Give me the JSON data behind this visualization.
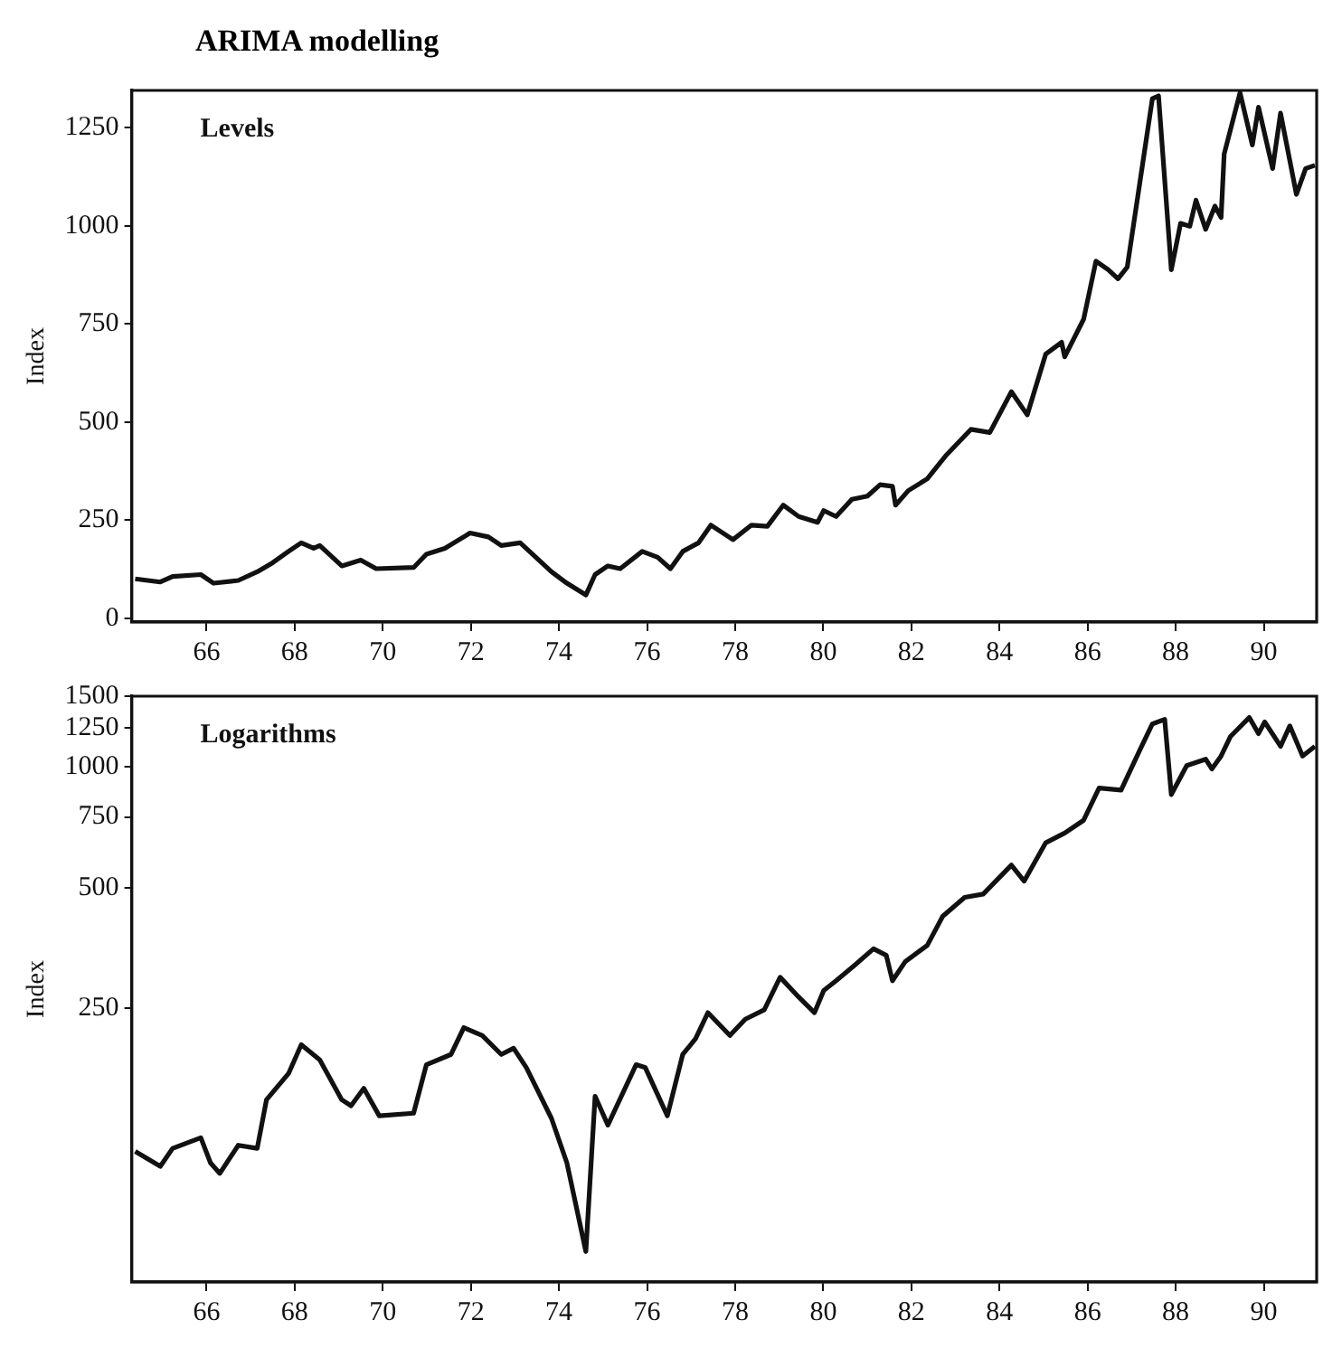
{
  "chart_data": [
    {
      "type": "line",
      "title": "ARIMA modelling",
      "ylabel": "Index",
      "annotations": [
        "Levels"
      ],
      "xlim": [
        64.3,
        91.2
      ],
      "xticks": [
        66,
        68,
        70,
        72,
        74,
        76,
        78,
        80,
        82,
        84,
        86,
        88,
        90
      ],
      "ylim": [
        -10,
        1345
      ],
      "yticks": [
        0,
        250,
        500,
        750,
        1000,
        1250
      ],
      "grid": false,
      "legend": false,
      "series": [
        {
          "color": "#111111",
          "x": [
            64.38,
            64.95,
            65.23,
            65.87,
            66.16,
            66.72,
            67.15,
            67.5,
            67.86,
            68.15,
            68.43,
            68.57,
            69.07,
            69.5,
            69.85,
            70.7,
            70.99,
            71.41,
            71.84,
            71.98,
            72.4,
            72.69,
            73.12,
            73.83,
            74.18,
            74.61,
            74.82,
            75.11,
            75.39,
            75.89,
            76.24,
            76.53,
            76.81,
            77.17,
            77.45,
            77.95,
            78.37,
            78.73,
            79.09,
            79.44,
            79.87,
            80.01,
            80.29,
            80.65,
            81.0,
            81.29,
            81.57,
            81.64,
            81.93,
            82.36,
            82.78,
            83.35,
            83.78,
            84.27,
            84.63,
            85.05,
            85.41,
            85.48,
            85.91,
            86.19,
            86.47,
            86.69,
            86.9,
            87.47,
            87.61,
            87.9,
            88.11,
            88.32,
            88.46,
            88.68,
            88.89,
            89.03,
            89.1,
            89.46,
            89.74,
            89.88,
            90.2,
            90.38,
            90.74,
            90.95,
            91.16
          ],
          "values": [
            100,
            92,
            106,
            111,
            89,
            96,
            118,
            141,
            170,
            192,
            178,
            185,
            133,
            148,
            126,
            129,
            163,
            178,
            207,
            217,
            207,
            185,
            192,
            118,
            89,
            59,
            111,
            133,
            126,
            170,
            155,
            126,
            170,
            192,
            237,
            200,
            237,
            234,
            288,
            259,
            244,
            274,
            259,
            303,
            311,
            340,
            336,
            288,
            325,
            355,
            414,
            481,
            473,
            577,
            518,
            673,
            703,
            666,
            762,
            910,
            888,
            865,
            895,
            1324,
            1331,
            888,
            1006,
            999,
            1065,
            991,
            1050,
            1021,
            1183,
            1339,
            1206,
            1302,
            1146,
            1287,
            1080,
            1146,
            1154
          ]
        }
      ]
    },
    {
      "type": "line",
      "ylabel": "Index",
      "annotations": [
        "Logarithms"
      ],
      "log": "y",
      "xlim": [
        64.3,
        91.2
      ],
      "xticks": [
        66,
        68,
        70,
        72,
        74,
        76,
        78,
        80,
        82,
        84,
        86,
        88,
        90
      ],
      "ylim": [
        52,
        1500
      ],
      "yticks": [
        250,
        500,
        750,
        1000,
        1250,
        1500
      ],
      "grid": false,
      "legend": false,
      "series": [
        {
          "color": "#111111",
          "x": [
            64.38,
            64.95,
            65.23,
            65.87,
            66.09,
            66.3,
            66.72,
            67.15,
            67.36,
            67.86,
            68.15,
            68.57,
            69.07,
            69.28,
            69.57,
            69.92,
            70.7,
            70.99,
            71.55,
            71.84,
            72.26,
            72.69,
            72.97,
            73.26,
            73.83,
            74.18,
            74.61,
            74.82,
            75.11,
            75.75,
            75.96,
            76.46,
            76.81,
            77.1,
            77.38,
            77.88,
            78.23,
            78.66,
            79.02,
            79.44,
            79.8,
            80.01,
            80.29,
            80.72,
            81.14,
            81.43,
            81.57,
            81.86,
            82.36,
            82.71,
            83.21,
            83.63,
            84.27,
            84.56,
            85.05,
            85.48,
            85.91,
            86.26,
            86.76,
            87.19,
            87.47,
            87.75,
            87.9,
            88.25,
            88.68,
            88.82,
            89.03,
            89.24,
            89.67,
            89.88,
            90.02,
            90.38,
            90.59,
            90.88,
            91.16
          ],
          "values": [
            110,
            101,
            112,
            119,
            103,
            97,
            114,
            112,
            148,
            172,
            203,
            186,
            148,
            143,
            158,
            135,
            137,
            181,
            192,
            224,
            214,
            192,
            199,
            178,
            133,
            103,
            62,
            151,
            128,
            181,
            178,
            135,
            192,
            210,
            244,
            214,
            235,
            248,
            299,
            267,
            244,
            277,
            293,
            321,
            352,
            339,
            293,
            327,
            359,
            424,
            473,
            482,
            569,
            519,
            647,
            684,
            736,
            885,
            875,
            1104,
            1279,
            1313,
            853,
            1007,
            1045,
            988,
            1064,
            1189,
            1327,
            1210,
            1294,
            1125,
            1265,
            1064,
            1125
          ]
        }
      ]
    }
  ]
}
